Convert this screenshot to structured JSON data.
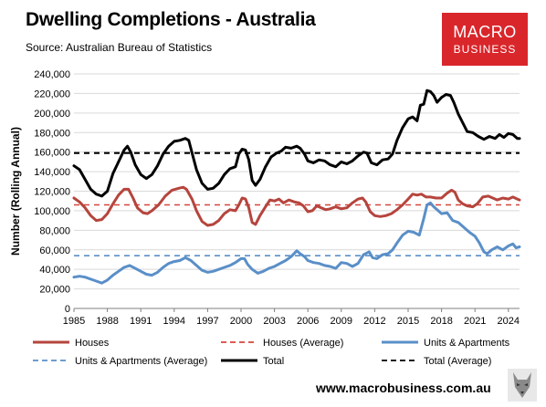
{
  "header": {
    "title": "Dwelling Completions - Australia",
    "subtitle": "Source: Australian Bureau of Statistics"
  },
  "logo": {
    "line1": "MACRO",
    "line2": "BUSINESS"
  },
  "footer": {
    "website": "www.macrobusiness.com.au",
    "icon": "wolf-icon"
  },
  "chart_data": {
    "type": "line",
    "title": "Dwelling Completions - Australia",
    "ylabel": "Number (Rolling Annual)",
    "xlabel": "",
    "ylim": [
      0,
      240000
    ],
    "xlim": [
      1985,
      2025
    ],
    "y_ticks": [
      "0",
      "20,000",
      "40,000",
      "60,000",
      "80,000",
      "100,000",
      "120,000",
      "140,000",
      "160,000",
      "180,000",
      "200,000",
      "220,000",
      "240,000"
    ],
    "x_ticks": [
      "1985",
      "1988",
      "1991",
      "1994",
      "1997",
      "2000",
      "2003",
      "2006",
      "2009",
      "2012",
      "2015",
      "2018",
      "2021",
      "2024"
    ],
    "grid": "horizontal",
    "legend_position": "bottom",
    "series": [
      {
        "name": "Houses",
        "color": "#b5453d",
        "style": "solid",
        "points": [
          [
            1985,
            113000
          ],
          [
            1985.5,
            109000
          ],
          [
            1986,
            103000
          ],
          [
            1986.5,
            95000
          ],
          [
            1987,
            90000
          ],
          [
            1987.5,
            91000
          ],
          [
            1988,
            97000
          ],
          [
            1988.5,
            107000
          ],
          [
            1989,
            116000
          ],
          [
            1989.5,
            122000
          ],
          [
            1989.9,
            122000
          ],
          [
            1990.3,
            113000
          ],
          [
            1990.7,
            103000
          ],
          [
            1991.2,
            98000
          ],
          [
            1991.6,
            97000
          ],
          [
            1992,
            100000
          ],
          [
            1992.6,
            106000
          ],
          [
            1993.2,
            115000
          ],
          [
            1993.8,
            121000
          ],
          [
            1994.4,
            123000
          ],
          [
            1994.8,
            124000
          ],
          [
            1995.1,
            122000
          ],
          [
            1995.6,
            112000
          ],
          [
            1996,
            100000
          ],
          [
            1996.5,
            89000
          ],
          [
            1997,
            85000
          ],
          [
            1997.5,
            86000
          ],
          [
            1998,
            90000
          ],
          [
            1998.5,
            97000
          ],
          [
            1999,
            101000
          ],
          [
            1999.5,
            100000
          ],
          [
            1999.8,
            106000
          ],
          [
            2000.1,
            113000
          ],
          [
            2000.4,
            112000
          ],
          [
            2000.7,
            103000
          ],
          [
            2001,
            88000
          ],
          [
            2001.3,
            86000
          ],
          [
            2001.7,
            95000
          ],
          [
            2002.2,
            104000
          ],
          [
            2002.6,
            111000
          ],
          [
            2003,
            110000
          ],
          [
            2003.4,
            112000
          ],
          [
            2003.8,
            108000
          ],
          [
            2004.3,
            111000
          ],
          [
            2004.8,
            109000
          ],
          [
            2005.2,
            108000
          ],
          [
            2005.6,
            105000
          ],
          [
            2006,
            99000
          ],
          [
            2006.4,
            100000
          ],
          [
            2006.8,
            105000
          ],
          [
            2007.2,
            103000
          ],
          [
            2007.6,
            101000
          ],
          [
            2008,
            102000
          ],
          [
            2008.5,
            104000
          ],
          [
            2009,
            102000
          ],
          [
            2009.5,
            103000
          ],
          [
            2010,
            108000
          ],
          [
            2010.5,
            112000
          ],
          [
            2010.9,
            113000
          ],
          [
            2011.2,
            109000
          ],
          [
            2011.6,
            99000
          ],
          [
            2012,
            95000
          ],
          [
            2012.5,
            94000
          ],
          [
            2013,
            95000
          ],
          [
            2013.5,
            97000
          ],
          [
            2014,
            101000
          ],
          [
            2014.5,
            106000
          ],
          [
            2015,
            112000
          ],
          [
            2015.4,
            117000
          ],
          [
            2015.8,
            116000
          ],
          [
            2016.2,
            117000
          ],
          [
            2016.6,
            114000
          ],
          [
            2017,
            114000
          ],
          [
            2017.5,
            113000
          ],
          [
            2018,
            113000
          ],
          [
            2018.5,
            118000
          ],
          [
            2018.9,
            121000
          ],
          [
            2019.2,
            119000
          ],
          [
            2019.5,
            111000
          ],
          [
            2019.9,
            107000
          ],
          [
            2020.3,
            105000
          ],
          [
            2020.8,
            104000
          ],
          [
            2021.2,
            107000
          ],
          [
            2021.7,
            114000
          ],
          [
            2022.2,
            115000
          ],
          [
            2022.6,
            113000
          ],
          [
            2023,
            111000
          ],
          [
            2023.5,
            113000
          ],
          [
            2024,
            112000
          ],
          [
            2024.4,
            114000
          ],
          [
            2024.8,
            112000
          ],
          [
            2025,
            111000
          ]
        ]
      },
      {
        "name": "Houses (Average)",
        "color": "#d6453d",
        "style": "dashed",
        "points": [
          [
            1985,
            106000
          ],
          [
            2025,
            106000
          ]
        ]
      },
      {
        "name": "Units & Apartments",
        "color": "#5a8fc8",
        "style": "solid",
        "points": [
          [
            1985,
            32000
          ],
          [
            1985.5,
            33000
          ],
          [
            1986,
            32000
          ],
          [
            1986.5,
            30000
          ],
          [
            1987,
            28000
          ],
          [
            1987.5,
            26000
          ],
          [
            1988,
            29000
          ],
          [
            1988.5,
            34000
          ],
          [
            1989,
            38000
          ],
          [
            1989.5,
            42000
          ],
          [
            1990,
            44000
          ],
          [
            1990.5,
            41000
          ],
          [
            1991,
            38000
          ],
          [
            1991.5,
            35000
          ],
          [
            1992,
            34000
          ],
          [
            1992.5,
            37000
          ],
          [
            1993,
            42000
          ],
          [
            1993.5,
            46000
          ],
          [
            1994,
            48000
          ],
          [
            1994.5,
            49000
          ],
          [
            1995,
            52000
          ],
          [
            1995.5,
            49000
          ],
          [
            1996,
            44000
          ],
          [
            1996.5,
            39000
          ],
          [
            1997,
            37000
          ],
          [
            1997.5,
            38000
          ],
          [
            1998,
            40000
          ],
          [
            1998.5,
            42000
          ],
          [
            1999,
            44000
          ],
          [
            1999.5,
            47000
          ],
          [
            2000,
            51000
          ],
          [
            2000.3,
            51000
          ],
          [
            2000.6,
            45000
          ],
          [
            2001,
            40000
          ],
          [
            2001.5,
            36000
          ],
          [
            2002,
            38000
          ],
          [
            2002.5,
            41000
          ],
          [
            2003,
            43000
          ],
          [
            2003.5,
            46000
          ],
          [
            2004,
            49000
          ],
          [
            2004.5,
            53000
          ],
          [
            2005,
            59000
          ],
          [
            2005.3,
            56000
          ],
          [
            2005.7,
            53000
          ],
          [
            2006,
            49000
          ],
          [
            2006.5,
            47000
          ],
          [
            2007,
            46000
          ],
          [
            2007.5,
            44000
          ],
          [
            2008,
            43000
          ],
          [
            2008.5,
            41000
          ],
          [
            2009,
            47000
          ],
          [
            2009.5,
            46000
          ],
          [
            2010,
            43000
          ],
          [
            2010.5,
            46000
          ],
          [
            2011,
            55000
          ],
          [
            2011.5,
            58000
          ],
          [
            2011.8,
            52000
          ],
          [
            2012.2,
            51000
          ],
          [
            2012.7,
            55000
          ],
          [
            2013.2,
            56000
          ],
          [
            2013.6,
            60000
          ],
          [
            2014,
            67000
          ],
          [
            2014.5,
            75000
          ],
          [
            2015,
            79000
          ],
          [
            2015.5,
            78000
          ],
          [
            2016,
            75000
          ],
          [
            2016.4,
            92000
          ],
          [
            2016.7,
            106000
          ],
          [
            2017,
            108000
          ],
          [
            2017.3,
            104000
          ],
          [
            2017.6,
            101000
          ],
          [
            2018,
            97000
          ],
          [
            2018.5,
            98000
          ],
          [
            2019,
            90000
          ],
          [
            2019.5,
            88000
          ],
          [
            2020,
            83000
          ],
          [
            2020.5,
            78000
          ],
          [
            2021,
            74000
          ],
          [
            2021.4,
            67000
          ],
          [
            2021.8,
            58000
          ],
          [
            2022.1,
            56000
          ],
          [
            2022.5,
            60000
          ],
          [
            2023,
            63000
          ],
          [
            2023.5,
            60000
          ],
          [
            2024,
            64000
          ],
          [
            2024.4,
            66000
          ],
          [
            2024.7,
            62000
          ],
          [
            2025,
            63000
          ]
        ]
      },
      {
        "name": "Units & Apartments (Average)",
        "color": "#5a8fc8",
        "style": "dashed",
        "points": [
          [
            1985,
            54000
          ],
          [
            2025,
            54000
          ]
        ]
      },
      {
        "name": "Total",
        "color": "#000000",
        "style": "solid",
        "points": [
          [
            1985,
            146000
          ],
          [
            1985.5,
            142000
          ],
          [
            1986,
            132000
          ],
          [
            1986.5,
            122000
          ],
          [
            1987,
            117000
          ],
          [
            1987.5,
            115000
          ],
          [
            1988,
            120000
          ],
          [
            1988.5,
            138000
          ],
          [
            1989,
            150000
          ],
          [
            1989.5,
            162000
          ],
          [
            1989.8,
            166000
          ],
          [
            1990.1,
            160000
          ],
          [
            1990.5,
            147000
          ],
          [
            1991,
            137000
          ],
          [
            1991.5,
            133000
          ],
          [
            1992,
            137000
          ],
          [
            1992.5,
            146000
          ],
          [
            1993,
            158000
          ],
          [
            1993.5,
            166000
          ],
          [
            1994,
            171000
          ],
          [
            1994.5,
            172000
          ],
          [
            1995,
            174000
          ],
          [
            1995.3,
            172000
          ],
          [
            1995.7,
            155000
          ],
          [
            1996,
            142000
          ],
          [
            1996.5,
            128000
          ],
          [
            1997,
            122000
          ],
          [
            1997.5,
            123000
          ],
          [
            1998,
            128000
          ],
          [
            1998.5,
            137000
          ],
          [
            1999,
            143000
          ],
          [
            1999.5,
            145000
          ],
          [
            1999.8,
            158000
          ],
          [
            2000.1,
            163000
          ],
          [
            2000.4,
            162000
          ],
          [
            2000.7,
            152000
          ],
          [
            2001,
            131000
          ],
          [
            2001.3,
            126000
          ],
          [
            2001.7,
            132000
          ],
          [
            2002.2,
            145000
          ],
          [
            2002.7,
            155000
          ],
          [
            2003.2,
            159000
          ],
          [
            2003.6,
            161000
          ],
          [
            2004,
            165000
          ],
          [
            2004.5,
            164000
          ],
          [
            2005,
            166000
          ],
          [
            2005.3,
            164000
          ],
          [
            2005.7,
            158000
          ],
          [
            2006,
            151000
          ],
          [
            2006.5,
            149000
          ],
          [
            2007,
            152000
          ],
          [
            2007.5,
            151000
          ],
          [
            2008,
            147000
          ],
          [
            2008.5,
            145000
          ],
          [
            2009,
            150000
          ],
          [
            2009.5,
            148000
          ],
          [
            2010,
            151000
          ],
          [
            2010.5,
            156000
          ],
          [
            2011,
            160000
          ],
          [
            2011.3,
            159000
          ],
          [
            2011.7,
            149000
          ],
          [
            2012.2,
            147000
          ],
          [
            2012.7,
            152000
          ],
          [
            2013.2,
            153000
          ],
          [
            2013.6,
            158000
          ],
          [
            2014,
            172000
          ],
          [
            2014.5,
            185000
          ],
          [
            2015,
            194000
          ],
          [
            2015.4,
            196000
          ],
          [
            2015.8,
            192000
          ],
          [
            2016.1,
            208000
          ],
          [
            2016.4,
            209000
          ],
          [
            2016.7,
            223000
          ],
          [
            2017,
            222000
          ],
          [
            2017.3,
            218000
          ],
          [
            2017.6,
            211000
          ],
          [
            2018,
            216000
          ],
          [
            2018.4,
            219000
          ],
          [
            2018.8,
            218000
          ],
          [
            2019.1,
            211000
          ],
          [
            2019.5,
            199000
          ],
          [
            2019.9,
            190000
          ],
          [
            2020.3,
            181000
          ],
          [
            2020.8,
            180000
          ],
          [
            2021.3,
            176000
          ],
          [
            2021.8,
            173000
          ],
          [
            2022.3,
            176000
          ],
          [
            2022.8,
            174000
          ],
          [
            2023.2,
            178000
          ],
          [
            2023.6,
            175000
          ],
          [
            2024,
            179000
          ],
          [
            2024.4,
            178000
          ],
          [
            2024.8,
            174000
          ],
          [
            2025,
            174000
          ]
        ]
      },
      {
        "name": "Total (Average)",
        "color": "#000000",
        "style": "dashed",
        "points": [
          [
            1985,
            159000
          ],
          [
            2025,
            159000
          ]
        ]
      }
    ],
    "legend": [
      [
        "Houses",
        "Houses (Average)",
        "Units & Apartments"
      ],
      [
        "Units & Apartments (Average)",
        "Total",
        "Total (Average)"
      ]
    ]
  }
}
